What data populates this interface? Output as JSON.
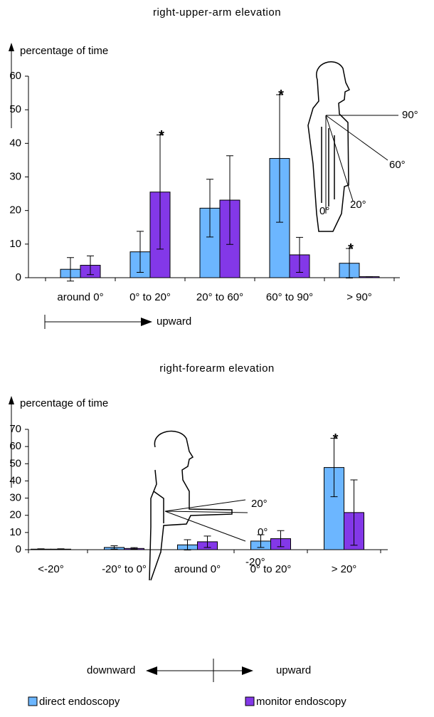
{
  "chart_data": [
    {
      "type": "bar",
      "title": "right-upper-arm elevation",
      "y_label": "percentage of time",
      "categories": [
        "around 0°",
        "0° to 20°",
        "20° to 60°",
        "60° to 90°",
        "> 90°"
      ],
      "series": [
        {
          "name": "direct endoscopy",
          "color": "#6cb6ff",
          "values": [
            2.5,
            7.7,
            20.7,
            35.5,
            4.3
          ],
          "errors": [
            3.5,
            6.1,
            8.6,
            19,
            4.4
          ],
          "significance": [
            null,
            null,
            null,
            "*",
            "*"
          ]
        },
        {
          "name": "monitor endoscopy",
          "color": "#8338e8",
          "values": [
            3.7,
            25.5,
            23.1,
            6.8,
            0.3
          ],
          "errors": [
            2.8,
            17,
            13.2,
            5.2,
            0
          ],
          "significance": [
            null,
            "*",
            null,
            null,
            null
          ]
        }
      ],
      "ylim": [
        0,
        60
      ],
      "yticks": [
        0,
        10,
        20,
        30,
        40,
        50,
        60
      ],
      "direction_labels": [
        "upward"
      ],
      "annotations": [
        "90°",
        "60°",
        "20°",
        "0°"
      ]
    },
    {
      "type": "bar",
      "title": "right-forearm elevation",
      "y_label": "percentage of time",
      "categories": [
        "<-20°",
        "-20° to 0°",
        "around 0°",
        "0° to 20°",
        "> 20°"
      ],
      "series": [
        {
          "name": "direct endoscopy",
          "color": "#6cb6ff",
          "values": [
            0.3,
            1.3,
            2.8,
            5,
            47.8
          ],
          "errors": [
            0.2,
            1,
            3,
            3.7,
            17
          ],
          "significance": [
            null,
            null,
            null,
            null,
            "*"
          ]
        },
        {
          "name": "monitor endoscopy",
          "color": "#8338e8",
          "values": [
            0.3,
            0.7,
            4.6,
            6.4,
            21.6
          ],
          "errors": [
            0.2,
            0.5,
            3.3,
            4.7,
            19
          ],
          "significance": [
            null,
            null,
            null,
            null,
            null
          ]
        }
      ],
      "ylim": [
        0,
        70
      ],
      "yticks": [
        0,
        10,
        20,
        30,
        40,
        50,
        60,
        70
      ],
      "direction_labels": [
        "downward",
        "upward"
      ],
      "annotations": [
        "20°",
        "0°",
        "-20°"
      ]
    }
  ]
}
